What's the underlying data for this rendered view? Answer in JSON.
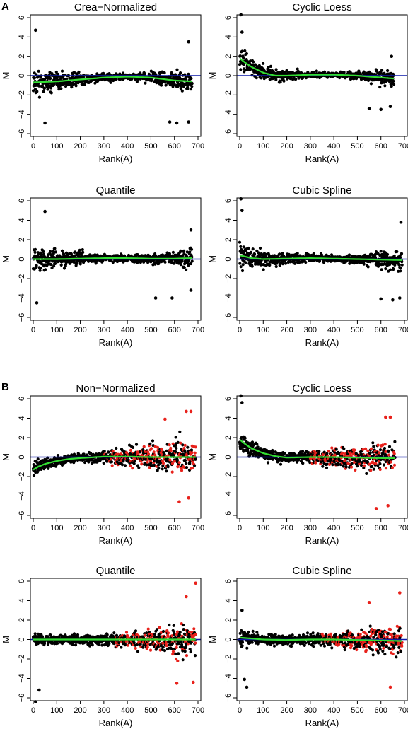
{
  "panel_labels": {
    "A": "A",
    "B": "B"
  },
  "colors": {
    "points": "#000000",
    "highlight": "#e8211b",
    "reference_line": "#0c18a8",
    "trend": "#33dd33"
  },
  "chart_data": [
    {
      "panel": "A",
      "type": "scatter",
      "title": "Crea−Normalized",
      "xlabel": "Rank(A)",
      "ylabel": "M",
      "xlim": [
        0,
        700
      ],
      "ylim": [
        -6,
        6
      ],
      "xticks": [
        "0",
        "100",
        "200",
        "300",
        "400",
        "500",
        "600",
        "700"
      ],
      "yticks": [
        "6",
        "4",
        "2",
        "0",
        "−2",
        "−4",
        "−6"
      ],
      "n_points": 680,
      "x_max": 675,
      "reference_line_y": 0,
      "trend": {
        "x": [
          0,
          100,
          200,
          300,
          400,
          500,
          600,
          675
        ],
        "y": [
          -0.7,
          -0.6,
          -0.4,
          -0.2,
          -0.1,
          -0.2,
          -0.5,
          -0.6
        ]
      },
      "scatter_profile": {
        "x": [
          0,
          100,
          200,
          300,
          400,
          500,
          600,
          675
        ],
        "spread": [
          2.0,
          1.5,
          1.1,
          0.6,
          0.5,
          0.8,
          1.3,
          1.7
        ],
        "outliers": [
          [
            10,
            4.7
          ],
          [
            50,
            -4.9
          ],
          [
            580,
            -4.8
          ],
          [
            610,
            -4.9
          ],
          [
            660,
            3.5
          ],
          [
            660,
            -4.8
          ]
        ]
      }
    },
    {
      "panel": "A",
      "type": "scatter",
      "title": "Cyclic Loess",
      "xlabel": "Rank(A)",
      "ylabel": "M",
      "xlim": [
        0,
        700
      ],
      "ylim": [
        -6,
        6
      ],
      "xticks": [
        "0",
        "100",
        "200",
        "300",
        "400",
        "500",
        "600",
        "700"
      ],
      "yticks": [
        "6",
        "4",
        "2",
        "0",
        "−2",
        "−4",
        "−6"
      ],
      "n_points": 660,
      "x_max": 655,
      "reference_line_y": 0,
      "trend": {
        "x": [
          0,
          20,
          50,
          100,
          150,
          200,
          300,
          400,
          500,
          600,
          655
        ],
        "y": [
          1.8,
          1.4,
          0.9,
          0.3,
          0.0,
          0.0,
          0.1,
          0.1,
          0.0,
          -0.2,
          -0.3
        ]
      },
      "scatter_profile": {
        "x": [
          0,
          100,
          200,
          300,
          400,
          500,
          600,
          655
        ],
        "spread": [
          1.7,
          1.2,
          0.8,
          0.5,
          0.4,
          0.7,
          1.1,
          1.3
        ],
        "outliers": [
          [
            5,
            6.3
          ],
          [
            10,
            4.5
          ],
          [
            550,
            -3.4
          ],
          [
            600,
            -3.5
          ],
          [
            640,
            -3.2
          ],
          [
            645,
            2.0
          ]
        ]
      }
    },
    {
      "panel": "A",
      "type": "scatter",
      "title": "Quantile",
      "xlabel": "Rank(A)",
      "ylabel": "M",
      "xlim": [
        0,
        700
      ],
      "ylim": [
        -6,
        6
      ],
      "xticks": [
        "0",
        "100",
        "200",
        "300",
        "400",
        "500",
        "600",
        "700"
      ],
      "yticks": [
        "6",
        "4",
        "2",
        "0",
        "−2",
        "−4",
        "−6"
      ],
      "n_points": 680,
      "x_max": 675,
      "reference_line_y": 0,
      "trend": {
        "x": [
          0,
          100,
          200,
          300,
          400,
          500,
          600,
          675
        ],
        "y": [
          0.0,
          0.0,
          0.05,
          0.1,
          0.1,
          0.05,
          0.05,
          0.1
        ]
      },
      "scatter_profile": {
        "x": [
          0,
          100,
          200,
          300,
          400,
          500,
          600,
          675
        ],
        "spread": [
          1.9,
          1.4,
          1.0,
          0.6,
          0.5,
          0.8,
          1.2,
          1.6
        ],
        "outliers": [
          [
            50,
            4.9
          ],
          [
            15,
            -4.5
          ],
          [
            520,
            -4.0
          ],
          [
            590,
            -4.0
          ],
          [
            670,
            3.0
          ],
          [
            670,
            -3.2
          ]
        ]
      }
    },
    {
      "panel": "A",
      "type": "scatter",
      "title": "Cubic Spline",
      "xlabel": "Rank(A)",
      "ylabel": "M",
      "xlim": [
        0,
        700
      ],
      "ylim": [
        -6,
        6
      ],
      "xticks": [
        "0",
        "100",
        "200",
        "300",
        "400",
        "500",
        "600",
        "700"
      ],
      "yticks": [
        "6",
        "4",
        "2",
        "0",
        "−2",
        "−4",
        "−6"
      ],
      "n_points": 690,
      "x_max": 690,
      "reference_line_y": 0,
      "trend": {
        "x": [
          0,
          50,
          100,
          200,
          300,
          400,
          500,
          600,
          690
        ],
        "y": [
          0.4,
          0.1,
          0.0,
          0.05,
          0.1,
          0.05,
          0.0,
          -0.05,
          -0.1
        ]
      },
      "scatter_profile": {
        "x": [
          0,
          100,
          200,
          300,
          400,
          500,
          600,
          690
        ],
        "spread": [
          1.9,
          1.4,
          1.0,
          0.6,
          0.5,
          0.8,
          1.3,
          1.6
        ],
        "outliers": [
          [
            5,
            6.2
          ],
          [
            10,
            5.0
          ],
          [
            600,
            -4.1
          ],
          [
            650,
            -4.2
          ],
          [
            685,
            3.8
          ],
          [
            680,
            -4.0
          ]
        ]
      }
    },
    {
      "panel": "B",
      "type": "scatter",
      "title": "Non−Normalized",
      "xlabel": "Rank(A)",
      "ylabel": "M",
      "xlim": [
        0,
        700
      ],
      "ylim": [
        -6,
        6
      ],
      "xticks": [
        "0",
        "100",
        "200",
        "300",
        "400",
        "500",
        "600",
        "700"
      ],
      "yticks": [
        "6",
        "4",
        "2",
        "0",
        "−2",
        "−4",
        "−6"
      ],
      "n_points": 690,
      "x_max": 690,
      "reference_line_y": 0,
      "highlight_from_x": 300,
      "trend": {
        "x": [
          0,
          20,
          50,
          100,
          150,
          200,
          300,
          400,
          500,
          600,
          690
        ],
        "y": [
          -1.3,
          -1.0,
          -0.7,
          -0.4,
          -0.2,
          -0.1,
          0.05,
          0.05,
          0.0,
          0.0,
          0.0
        ]
      },
      "scatter_profile": {
        "x": [
          0,
          100,
          200,
          300,
          400,
          500,
          600,
          690
        ],
        "spread": [
          1.2,
          0.7,
          0.8,
          1.0,
          1.5,
          2.0,
          2.4,
          2.6
        ],
        "outliers": [
          [
            620,
            -4.6
          ],
          [
            650,
            4.7
          ],
          [
            670,
            4.7
          ],
          [
            560,
            3.9
          ],
          [
            660,
            -4.2
          ]
        ]
      }
    },
    {
      "panel": "B",
      "type": "scatter",
      "title": "Cyclic Loess",
      "xlabel": "Rank(A)",
      "ylabel": "M",
      "xlim": [
        0,
        700
      ],
      "ylim": [
        -6,
        6
      ],
      "xticks": [
        "0",
        "100",
        "200",
        "300",
        "400",
        "500",
        "600",
        "700"
      ],
      "yticks": [
        "6",
        "4",
        "2",
        "0",
        "−2",
        "−4",
        "−6"
      ],
      "n_points": 660,
      "x_max": 660,
      "reference_line_y": 0,
      "highlight_from_x": 300,
      "trend": {
        "x": [
          0,
          20,
          50,
          100,
          150,
          200,
          300,
          400,
          500,
          600,
          660
        ],
        "y": [
          1.8,
          1.4,
          0.9,
          0.4,
          0.1,
          -0.05,
          0.0,
          0.0,
          -0.05,
          -0.1,
          -0.1
        ]
      },
      "scatter_profile": {
        "x": [
          0,
          100,
          200,
          300,
          400,
          500,
          600,
          660
        ],
        "spread": [
          1.7,
          1.0,
          0.8,
          1.0,
          1.4,
          1.9,
          2.3,
          2.4
        ],
        "outliers": [
          [
            5,
            6.3
          ],
          [
            10,
            5.6
          ],
          [
            580,
            -5.3
          ],
          [
            620,
            4.1
          ],
          [
            640,
            4.1
          ],
          [
            630,
            -5.0
          ]
        ]
      }
    },
    {
      "panel": "B",
      "type": "scatter",
      "title": "Quantile",
      "xlabel": "Rank(A)",
      "ylabel": "M",
      "xlim": [
        0,
        700
      ],
      "ylim": [
        -6,
        6
      ],
      "xticks": [
        "0",
        "100",
        "200",
        "300",
        "400",
        "500",
        "600",
        "700"
      ],
      "yticks": [
        "6",
        "4",
        "2",
        "0",
        "−2",
        "−4",
        "−6"
      ],
      "n_points": 690,
      "x_max": 690,
      "reference_line_y": 0,
      "highlight_from_x": 350,
      "trend": {
        "x": [
          0,
          100,
          200,
          300,
          400,
          500,
          600,
          690
        ],
        "y": [
          0.0,
          0.0,
          0.0,
          0.0,
          0.0,
          0.0,
          0.0,
          0.0
        ]
      },
      "scatter_profile": {
        "x": [
          0,
          100,
          200,
          300,
          400,
          500,
          600,
          690
        ],
        "spread": [
          1.2,
          0.8,
          0.8,
          0.9,
          1.2,
          1.7,
          2.4,
          2.7
        ],
        "outliers": [
          [
            10,
            -6.4
          ],
          [
            25,
            -5.2
          ],
          [
            690,
            5.8
          ],
          [
            650,
            4.4
          ],
          [
            610,
            -4.5
          ],
          [
            680,
            -4.4
          ]
        ]
      }
    },
    {
      "panel": "B",
      "type": "scatter",
      "title": "Cubic Spline",
      "xlabel": "Rank(A)",
      "ylabel": "M",
      "xlim": [
        0,
        700
      ],
      "ylim": [
        -6,
        6
      ],
      "xticks": [
        "0",
        "100",
        "200",
        "300",
        "400",
        "500",
        "600",
        "700"
      ],
      "yticks": [
        "6",
        "4",
        "2",
        "0",
        "−2",
        "−4",
        "−6"
      ],
      "n_points": 690,
      "x_max": 690,
      "reference_line_y": 0,
      "highlight_from_x": 350,
      "trend": {
        "x": [
          0,
          100,
          200,
          300,
          400,
          500,
          600,
          690
        ],
        "y": [
          0.2,
          0.0,
          -0.05,
          0.0,
          0.0,
          -0.05,
          -0.1,
          -0.15
        ]
      },
      "scatter_profile": {
        "x": [
          0,
          100,
          200,
          300,
          400,
          500,
          600,
          690
        ],
        "spread": [
          1.4,
          0.8,
          0.8,
          0.9,
          1.2,
          1.7,
          2.4,
          2.6
        ],
        "outliers": [
          [
            10,
            3.0
          ],
          [
            20,
            -4.1
          ],
          [
            30,
            -4.9
          ],
          [
            680,
            4.8
          ],
          [
            640,
            -4.9
          ],
          [
            550,
            3.8
          ]
        ]
      }
    }
  ]
}
